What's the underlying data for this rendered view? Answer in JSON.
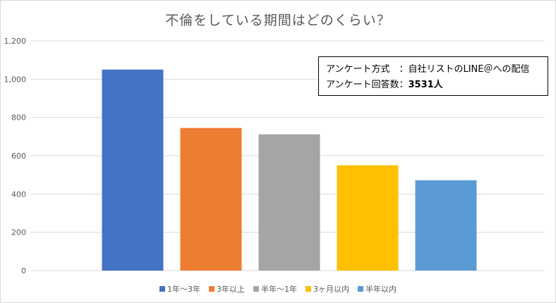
{
  "chart_data": {
    "type": "bar",
    "title": "不倫をしている期間はどのくらい？",
    "categories": [
      "1年～3年",
      "3年以上",
      "半年～1年",
      "3ヶ月以内",
      "半年以内"
    ],
    "values": [
      1050,
      745,
      712,
      550,
      472
    ],
    "colors": [
      "#4472C4",
      "#ED7D31",
      "#A5A5A5",
      "#FFC000",
      "#5B9BD5"
    ],
    "ylim": [
      0,
      1200
    ],
    "yticks": [
      "0",
      "200",
      "400",
      "600",
      "800",
      "1,000",
      "1,200"
    ],
    "ytick_values": [
      0,
      200,
      400,
      600,
      800,
      1000,
      1200
    ],
    "grid": true,
    "legend_position": "bottom",
    "xlabel": "",
    "ylabel": ""
  },
  "annotation": {
    "line1": "アンケート方式　：自社リストのLINE＠への配信",
    "line2_prefix": "アンケート回答数：",
    "line2_value": "3531人"
  },
  "legend": [
    {
      "label": "1年～3年",
      "color": "#4472C4"
    },
    {
      "label": "3年以上",
      "color": "#ED7D31"
    },
    {
      "label": "半年～1年",
      "color": "#A5A5A5"
    },
    {
      "label": "3ヶ月以内",
      "color": "#FFC000"
    },
    {
      "label": "半年以内",
      "color": "#5B9BD5"
    }
  ]
}
